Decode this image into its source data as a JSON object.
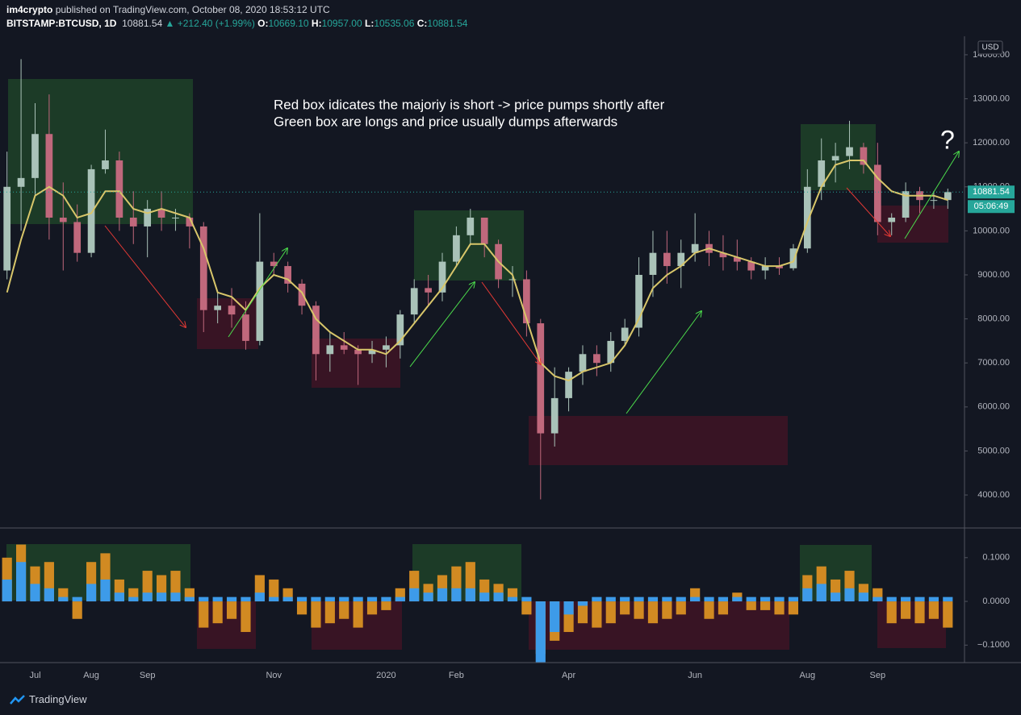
{
  "header": {
    "author": "im4crypto",
    "published": "published on TradingView.com, October 08, 2020 18:53:12 UTC",
    "symbol": "BITSTAMP:BTCUSD, 1D",
    "price": "10881.54",
    "change": "▲ +212.40 (+1.99%)",
    "open_label": "O:",
    "open": "10669.10",
    "high_label": "H:",
    "high": "10957.00",
    "low_label": "L:",
    "low": "10535.06",
    "close_label": "C:",
    "close": "10881.54"
  },
  "chart_data": [
    {
      "type": "candlestick",
      "annotations": [
        "Red box idicates the majoriy is short -> price pumps shortly after",
        "Green box are longs and price usually dumps afterwards",
        "?"
      ],
      "categories": [
        null,
        null,
        "Jul",
        null,
        null,
        null,
        "Aug",
        null,
        null,
        null,
        "Sep",
        null,
        null,
        null,
        null,
        null,
        null,
        null,
        null,
        "Nov",
        null,
        null,
        null,
        null,
        null,
        null,
        null,
        "2020",
        null,
        null,
        null,
        null,
        "Feb",
        null,
        null,
        null,
        null,
        null,
        null,
        null,
        "Apr",
        null,
        null,
        null,
        null,
        null,
        null,
        null,
        null,
        "Jun",
        null,
        null,
        null,
        null,
        null,
        null,
        null,
        "Aug",
        null,
        null,
        null,
        null,
        "Sep",
        null,
        null,
        null,
        null,
        null
      ],
      "open": [
        9100,
        11000,
        11200,
        12200,
        10300,
        10200,
        9500,
        11400,
        11600,
        10300,
        10100,
        10500,
        10300,
        10300,
        10100,
        8200,
        8300,
        8100,
        7500,
        9300,
        9200,
        8800,
        8300,
        7200,
        7400,
        7300,
        7200,
        7300,
        7400,
        8100,
        8700,
        8600,
        9300,
        9900,
        10300,
        9700,
        8900,
        8900,
        7900,
        5400,
        6200,
        6800,
        7200,
        7000,
        7500,
        7800,
        9000,
        9500,
        9200,
        9500,
        9700,
        9500,
        9400,
        9300,
        9100,
        9200,
        9150,
        9600,
        11000,
        11600,
        11700,
        11900,
        11500,
        10200,
        10300,
        10900,
        10700,
        10700
      ],
      "high": [
        11800,
        13900,
        12900,
        13100,
        11100,
        10600,
        11500,
        12300,
        11800,
        10900,
        10700,
        10900,
        10500,
        10400,
        10200,
        8600,
        8700,
        8400,
        10400,
        9500,
        9300,
        8900,
        8400,
        7700,
        7700,
        7400,
        7500,
        7600,
        8200,
        8900,
        9000,
        9500,
        10100,
        10500,
        10300,
        9800,
        9200,
        9100,
        8000,
        6900,
        6900,
        7400,
        7400,
        7700,
        8000,
        9400,
        10000,
        10000,
        9800,
        10400,
        10000,
        9900,
        9800,
        9400,
        9400,
        9400,
        9700,
        11400,
        12100,
        12000,
        12500,
        12000,
        12000,
        10400,
        11100,
        11000,
        10900,
        10960
      ],
      "low": [
        8900,
        10000,
        10800,
        9800,
        9100,
        9300,
        9400,
        11300,
        10000,
        9700,
        9400,
        10000,
        10000,
        9600,
        7700,
        7900,
        7800,
        7300,
        7400,
        9000,
        8600,
        8100,
        6600,
        6800,
        7200,
        6500,
        7000,
        6900,
        7100,
        7900,
        8300,
        8400,
        9200,
        9700,
        9400,
        8700,
        8500,
        7600,
        3900,
        5100,
        5900,
        6500,
        6700,
        6800,
        7400,
        7600,
        8500,
        8800,
        8700,
        9300,
        9200,
        9100,
        9100,
        8900,
        8900,
        9000,
        9100,
        9500,
        10700,
        11100,
        11400,
        11300,
        9900,
        9900,
        10200,
        10400,
        10500,
        10500
      ],
      "close": [
        11000,
        11200,
        12200,
        10300,
        10200,
        9500,
        11400,
        11600,
        10300,
        10100,
        10500,
        10300,
        10300,
        10100,
        8200,
        8300,
        8100,
        7500,
        9300,
        9200,
        8800,
        8300,
        7200,
        7400,
        7300,
        7200,
        7300,
        7400,
        8100,
        8700,
        8600,
        9300,
        9900,
        10300,
        9700,
        8900,
        8900,
        7900,
        5400,
        6200,
        6800,
        7200,
        7000,
        7500,
        7800,
        9000,
        9500,
        9200,
        9500,
        9700,
        9500,
        9400,
        9300,
        9100,
        9200,
        9150,
        9600,
        11000,
        11600,
        11700,
        11900,
        11500,
        10200,
        10300,
        10900,
        10700,
        10700,
        10880
      ],
      "up_color": "#a9c2b8",
      "down_color": "#c0687c",
      "ma": {
        "color": "#d8c66a",
        "values": [
          8600,
          9800,
          10800,
          11000,
          10800,
          10300,
          10400,
          10900,
          10900,
          10500,
          10400,
          10500,
          10400,
          10300,
          9600,
          8600,
          8500,
          8200,
          8700,
          9000,
          8900,
          8600,
          8000,
          7700,
          7500,
          7300,
          7300,
          7200,
          7500,
          7900,
          8300,
          8700,
          9200,
          9700,
          9700,
          9300,
          9000,
          8000,
          7000,
          6700,
          6600,
          6800,
          6900,
          7000,
          7400,
          8000,
          8700,
          9000,
          9200,
          9500,
          9600,
          9500,
          9400,
          9300,
          9200,
          9200,
          9300,
          10200,
          11000,
          11500,
          11600,
          11600,
          11200,
          10900,
          10800,
          10800,
          10800,
          10700
        ]
      },
      "ylim": [
        3250,
        14420
      ],
      "yticks": [
        {
          "value": 4000,
          "label": "4000.00"
        },
        {
          "value": 5000,
          "label": "5000.00"
        },
        {
          "value": 6000,
          "label": "6000.00"
        },
        {
          "value": 7000,
          "label": "7000.00"
        },
        {
          "value": 8000,
          "label": "8000.00"
        },
        {
          "value": 9000,
          "label": "9000.00"
        },
        {
          "value": 10000,
          "label": "10000.00"
        },
        {
          "value": 11000,
          "label": "11000.00"
        },
        {
          "value": 12000,
          "label": "12000.00"
        },
        {
          "value": 13000,
          "label": "13000.00"
        },
        {
          "value": 14000,
          "label": "14000.00"
        }
      ],
      "y_axis_label": "USD",
      "last_price": {
        "value": 10881.54,
        "label": "10881.54"
      },
      "last_price_color": "#26a69a",
      "countdown": "05:06:49",
      "grid": false
    },
    {
      "type": "bar",
      "series": [
        {
          "color": "#d18a22",
          "values": [
            0.1,
            0.13,
            0.08,
            0.09,
            0.03,
            -0.04,
            0.09,
            0.11,
            0.05,
            0.03,
            0.07,
            0.06,
            0.07,
            0.03,
            -0.06,
            -0.05,
            -0.04,
            -0.07,
            0.06,
            0.05,
            0.03,
            -0.03,
            -0.06,
            -0.05,
            -0.04,
            -0.06,
            -0.03,
            -0.02,
            0.03,
            0.07,
            0.04,
            0.06,
            0.08,
            0.09,
            0.05,
            0.04,
            0.03,
            -0.03,
            -0.12,
            -0.09,
            -0.07,
            -0.05,
            -0.06,
            -0.05,
            -0.03,
            -0.04,
            -0.05,
            -0.04,
            -0.03,
            0.03,
            -0.04,
            -0.03,
            0.02,
            -0.02,
            -0.02,
            -0.03,
            -0.03,
            0.06,
            0.08,
            0.05,
            0.07,
            0.04,
            0.03,
            -0.05,
            -0.04,
            -0.05,
            -0.04,
            -0.06
          ]
        },
        {
          "color": "#3d9be9",
          "values": [
            0.05,
            0.09,
            0.04,
            0.03,
            0.01,
            0.01,
            0.04,
            0.05,
            0.02,
            0.01,
            0.02,
            0.02,
            0.02,
            0.01,
            0.01,
            0.01,
            0.01,
            0.01,
            0.02,
            0.01,
            0.01,
            0.01,
            0.01,
            0.01,
            0.01,
            0.01,
            0.01,
            0.01,
            0.01,
            0.03,
            0.02,
            0.03,
            0.03,
            0.03,
            0.02,
            0.02,
            0.01,
            0.01,
            -0.14,
            -0.07,
            -0.03,
            -0.01,
            0.01,
            0.01,
            0.01,
            0.01,
            0.01,
            0.01,
            0.01,
            0.01,
            0.01,
            0.01,
            0.01,
            0.01,
            0.01,
            0.01,
            0.01,
            0.03,
            0.04,
            0.02,
            0.03,
            0.02,
            0.01,
            0.01,
            0.01,
            0.01,
            0.01,
            0.01
          ]
        }
      ],
      "ylim": [
        -0.14,
        0.166
      ],
      "yticks": [
        {
          "value": 0.1,
          "label": "0.1000"
        },
        {
          "value": 0,
          "label": "0.0000"
        },
        {
          "value": -0.1,
          "label": "−0.1000"
        }
      ]
    }
  ],
  "footer": {
    "brand": "TradingView"
  }
}
